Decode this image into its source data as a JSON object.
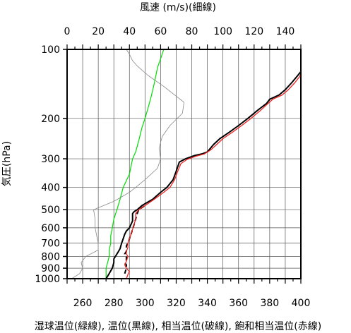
{
  "chart_data": {
    "type": "line",
    "title_top": "風速 (m/s)(細線)",
    "ylabel": "気圧(hPa)",
    "xlabel_bottom": "湿球温位(緑線), 温位(黒線), 相当温位(破線), 飽和相当温位(赤線)",
    "y_scale": "log",
    "ylim": [
      1000,
      100
    ],
    "y_ticks": [
      100,
      200,
      300,
      400,
      500,
      600,
      700,
      800,
      900,
      1000
    ],
    "x_bottom_range": [
      250,
      400
    ],
    "x_bottom_ticks": [
      260,
      280,
      300,
      320,
      340,
      360,
      380,
      400
    ],
    "x_top_range": [
      0,
      150
    ],
    "x_top_ticks": [
      0,
      20,
      40,
      60,
      80,
      100,
      120,
      140
    ],
    "grid": true,
    "colors": {
      "wet_bulb": "#00dd00",
      "potential": "#000000",
      "equivalent": "#000000",
      "saturated": "#ee2222",
      "wind": "#888888"
    },
    "series": [
      {
        "key": "wet_bulb",
        "axis": "bottom",
        "style": "solid",
        "points": [
          [
            275,
            1000
          ],
          [
            275,
            950
          ],
          [
            275,
            900
          ],
          [
            276,
            850
          ],
          [
            277,
            800
          ],
          [
            277,
            750
          ],
          [
            278,
            700
          ],
          [
            278,
            650
          ],
          [
            279,
            600
          ],
          [
            280,
            550
          ],
          [
            282,
            500
          ],
          [
            284,
            450
          ],
          [
            286,
            400
          ],
          [
            290,
            350
          ],
          [
            292,
            300
          ],
          [
            294,
            280
          ],
          [
            296,
            250
          ],
          [
            298,
            220
          ],
          [
            300,
            200
          ],
          [
            302,
            180
          ],
          [
            304,
            160
          ],
          [
            306,
            140
          ],
          [
            308,
            120
          ],
          [
            310,
            110
          ],
          [
            312,
            100
          ]
        ]
      },
      {
        "key": "potential",
        "axis": "bottom",
        "style": "solid",
        "points": [
          [
            275,
            1000
          ],
          [
            277,
            950
          ],
          [
            279,
            900
          ],
          [
            280,
            850
          ],
          [
            280,
            820
          ],
          [
            281,
            800
          ],
          [
            282,
            780
          ],
          [
            283,
            760
          ],
          [
            284,
            740
          ],
          [
            285,
            700
          ],
          [
            286,
            670
          ],
          [
            287,
            640
          ],
          [
            288,
            620
          ],
          [
            290,
            600
          ],
          [
            292,
            560
          ],
          [
            292,
            520
          ],
          [
            293,
            510
          ],
          [
            295,
            500
          ],
          [
            298,
            480
          ],
          [
            305,
            450
          ],
          [
            310,
            420
          ],
          [
            314,
            400
          ],
          [
            318,
            370
          ],
          [
            320,
            340
          ],
          [
            322,
            310
          ],
          [
            326,
            300
          ],
          [
            332,
            290
          ],
          [
            337,
            285
          ],
          [
            340,
            280
          ],
          [
            344,
            260
          ],
          [
            348,
            245
          ],
          [
            354,
            230
          ],
          [
            360,
            215
          ],
          [
            366,
            200
          ],
          [
            372,
            185
          ],
          [
            378,
            172
          ],
          [
            380,
            165
          ],
          [
            386,
            158
          ],
          [
            390,
            150
          ],
          [
            394,
            140
          ],
          [
            398,
            130
          ],
          [
            400,
            125
          ]
        ]
      },
      {
        "key": "equivalent",
        "axis": "bottom",
        "style": "dashed",
        "points": [
          [
            287,
            950
          ],
          [
            288,
            900
          ],
          [
            288,
            870
          ],
          [
            287,
            850
          ],
          [
            288,
            830
          ],
          [
            288,
            800
          ],
          [
            287,
            780
          ],
          [
            288,
            760
          ],
          [
            288,
            740
          ],
          [
            288,
            720
          ],
          [
            289,
            700
          ],
          [
            290,
            670
          ],
          [
            291,
            640
          ],
          [
            292,
            610
          ],
          [
            293,
            580
          ],
          [
            294,
            550
          ],
          [
            295,
            520
          ],
          [
            296,
            500
          ],
          [
            300,
            480
          ]
        ]
      },
      {
        "key": "saturated",
        "axis": "bottom",
        "style": "solid",
        "points": [
          [
            288,
            1000
          ],
          [
            289,
            960
          ],
          [
            290,
            930
          ],
          [
            288,
            900
          ],
          [
            287,
            870
          ],
          [
            288,
            840
          ],
          [
            289,
            800
          ],
          [
            288,
            780
          ],
          [
            288,
            760
          ],
          [
            289,
            730
          ],
          [
            289,
            700
          ],
          [
            290,
            670
          ],
          [
            291,
            640
          ],
          [
            292,
            610
          ],
          [
            293,
            580
          ],
          [
            294,
            550
          ],
          [
            294,
            520
          ],
          [
            296,
            500
          ],
          [
            300,
            480
          ],
          [
            306,
            450
          ],
          [
            312,
            420
          ],
          [
            316,
            400
          ],
          [
            319,
            370
          ],
          [
            321,
            340
          ],
          [
            323,
            315
          ],
          [
            327,
            302
          ],
          [
            333,
            292
          ],
          [
            338,
            286
          ],
          [
            342,
            275
          ],
          [
            346,
            260
          ],
          [
            350,
            245
          ],
          [
            356,
            230
          ],
          [
            362,
            215
          ],
          [
            368,
            200
          ],
          [
            374,
            185
          ],
          [
            379,
            172
          ],
          [
            382,
            165
          ],
          [
            388,
            158
          ],
          [
            392,
            150
          ],
          [
            396,
            140
          ],
          [
            399,
            132
          ],
          [
            400,
            128
          ]
        ]
      },
      {
        "key": "wind",
        "axis": "top",
        "style": "solid",
        "points": [
          [
            3,
            1000
          ],
          [
            8,
            950
          ],
          [
            10,
            900
          ],
          [
            9,
            850
          ],
          [
            12,
            800
          ],
          [
            20,
            750
          ],
          [
            20,
            700
          ],
          [
            19,
            650
          ],
          [
            18,
            600
          ],
          [
            18,
            550
          ],
          [
            17,
            500
          ],
          [
            30,
            460
          ],
          [
            40,
            420
          ],
          [
            44,
            400
          ],
          [
            50,
            370
          ],
          [
            58,
            330
          ],
          [
            60,
            300
          ],
          [
            59,
            270
          ],
          [
            61,
            240
          ],
          [
            66,
            215
          ],
          [
            74,
            190
          ],
          [
            75,
            170
          ],
          [
            70,
            160
          ],
          [
            62,
            145
          ],
          [
            52,
            130
          ],
          [
            45,
            118
          ],
          [
            42,
            112
          ],
          [
            40,
            105
          ],
          [
            38,
            100
          ]
        ]
      }
    ]
  }
}
